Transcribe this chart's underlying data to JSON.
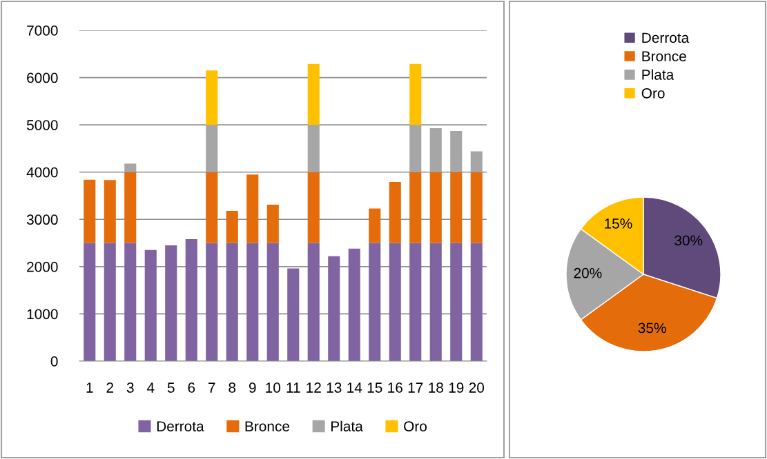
{
  "chart_data": [
    {
      "type": "bar",
      "stacked": true,
      "categories": [
        "1",
        "2",
        "3",
        "4",
        "5",
        "6",
        "7",
        "8",
        "9",
        "10",
        "11",
        "12",
        "13",
        "14",
        "15",
        "16",
        "17",
        "18",
        "19",
        "20"
      ],
      "series": [
        {
          "name": "Derrota",
          "color": "#8064a2",
          "values": [
            2500,
            2500,
            2500,
            2350,
            2450,
            2580,
            2500,
            2500,
            2500,
            2500,
            1960,
            2500,
            2220,
            2380,
            2500,
            2500,
            2500,
            2500,
            2500,
            2500
          ]
        },
        {
          "name": "Bronce",
          "color": "#e46c0a",
          "values": [
            1340,
            1330,
            1500,
            null,
            null,
            null,
            1500,
            680,
            1450,
            810,
            null,
            1500,
            null,
            null,
            730,
            1290,
            1500,
            1500,
            1500,
            1500
          ]
        },
        {
          "name": "Plata",
          "color": "#a6a6a6",
          "values": [
            null,
            null,
            180,
            null,
            null,
            null,
            1000,
            null,
            null,
            null,
            null,
            1000,
            null,
            null,
            null,
            null,
            1000,
            930,
            870,
            440
          ]
        },
        {
          "name": "Oro",
          "color": "#ffc000",
          "values": [
            null,
            null,
            null,
            null,
            null,
            null,
            1150,
            null,
            null,
            null,
            null,
            1290,
            null,
            null,
            null,
            null,
            1290,
            null,
            null,
            null
          ]
        }
      ],
      "ylim": [
        0,
        7000
      ],
      "yticks": [
        0,
        1000,
        2000,
        3000,
        4000,
        5000,
        6000,
        7000
      ],
      "grid": "y",
      "legend": "bottom"
    },
    {
      "type": "pie",
      "categories": [
        "Derrota",
        "Bronce",
        "Plata",
        "Oro"
      ],
      "values": [
        30,
        35,
        20,
        15
      ],
      "colors": [
        "#604a7b",
        "#e46c0a",
        "#a6a6a6",
        "#ffc000"
      ],
      "value_labels": [
        "30%",
        "35%",
        "20%",
        "15%"
      ],
      "legend": "top"
    }
  ]
}
